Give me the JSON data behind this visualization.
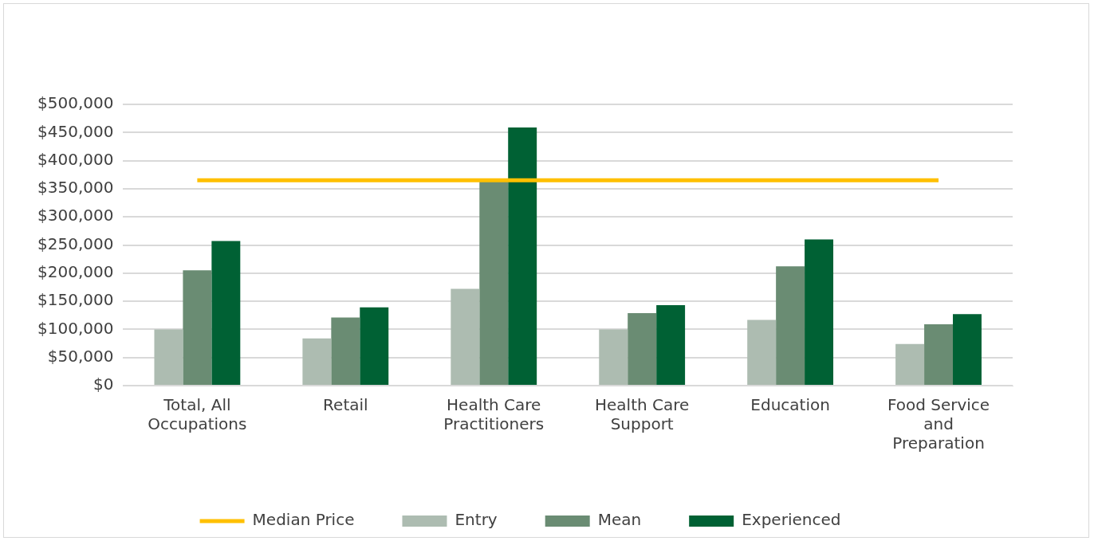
{
  "chart_data": {
    "type": "bar",
    "categories": [
      "Total, All Occupations",
      "Retail",
      "Health Care Practitioners",
      "Health Care Support",
      "Education",
      "Food Service and Preparation"
    ],
    "series": [
      {
        "name": "Entry",
        "color": "#adbcb1",
        "values": [
          100000,
          84000,
          172000,
          100000,
          117000,
          74000
        ]
      },
      {
        "name": "Mean",
        "color": "#6a8c73",
        "values": [
          205000,
          121000,
          363000,
          129000,
          212000,
          109000
        ]
      },
      {
        "name": "Experienced",
        "color": "#006134",
        "values": [
          257000,
          139000,
          459000,
          143000,
          260000,
          127000
        ]
      },
      {
        "name": "Median Price",
        "type": "line",
        "color": "#ffc000",
        "values": [
          365000,
          365000,
          365000,
          365000,
          365000,
          365000
        ]
      }
    ],
    "ylim": [
      0,
      500000
    ],
    "yticks": [
      {
        "value": 0,
        "label": "$0"
      },
      {
        "value": 50000,
        "label": "$50,000"
      },
      {
        "value": 100000,
        "label": "$100,000"
      },
      {
        "value": 150000,
        "label": "$150,000"
      },
      {
        "value": 200000,
        "label": "$200,000"
      },
      {
        "value": 250000,
        "label": "$250,000"
      },
      {
        "value": 300000,
        "label": "$300,000"
      },
      {
        "value": 350000,
        "label": "$350,000"
      },
      {
        "value": 400000,
        "label": "$400,000"
      },
      {
        "value": 450000,
        "label": "$450,000"
      },
      {
        "value": 500000,
        "label": "$500,000"
      }
    ],
    "grid": "y",
    "legend": "bottom",
    "marker": "none"
  }
}
